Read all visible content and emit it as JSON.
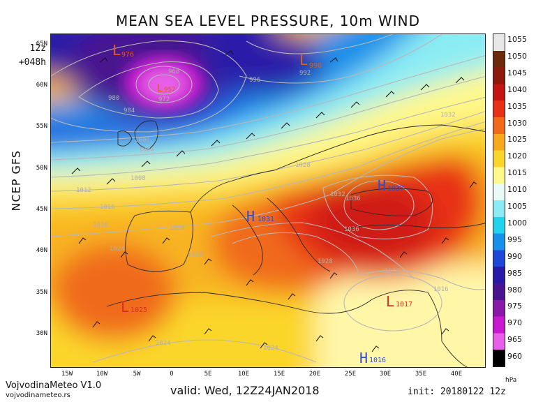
{
  "title": "MEAN SEA LEVEL PRESSURE, 10m WIND",
  "run": {
    "cycle": "12z",
    "lead": "+048h"
  },
  "model": "NCEP GFS",
  "lat_ticks": [
    "65N",
    "60N",
    "55N",
    "50N",
    "45N",
    "40N",
    "35N",
    "30N"
  ],
  "lon_ticks": [
    "15W",
    "10W",
    "5W",
    "0",
    "5E",
    "10E",
    "15E",
    "20E",
    "25E",
    "30E",
    "35E",
    "40E"
  ],
  "colorbar": {
    "unit": "hPa",
    "labels": [
      "1055",
      "1050",
      "1045",
      "1040",
      "1035",
      "1030",
      "1025",
      "1020",
      "1015",
      "1010",
      "1005",
      "1000",
      "995",
      "990",
      "985",
      "980",
      "975",
      "970",
      "965",
      "960"
    ],
    "colors": [
      "#e8e8e8",
      "#6b2a0c",
      "#8e1a0e",
      "#c41414",
      "#e83018",
      "#f06a1a",
      "#f8a81c",
      "#fbd62a",
      "#fff88a",
      "#e8fbf6",
      "#8cecf4",
      "#20d4ee",
      "#1890ea",
      "#2048d8",
      "#2a1aa8",
      "#4a1490",
      "#8a18a8",
      "#c81ad0",
      "#e860e8",
      "#000000"
    ]
  },
  "systems": [
    {
      "type": "L",
      "value": "976",
      "color": "#e05a1a"
    },
    {
      "type": "L",
      "value": "957",
      "color": "#e05a1a"
    },
    {
      "type": "L",
      "value": "990",
      "color": "#e05a1a"
    },
    {
      "type": "H",
      "value": "1031",
      "color": "#2b4ad8"
    },
    {
      "type": "H",
      "value": "1037",
      "color": "#2b4ad8"
    },
    {
      "type": "L",
      "value": "1025",
      "color": "#d83020"
    },
    {
      "type": "L",
      "value": "1017",
      "color": "#d83020"
    },
    {
      "type": "H",
      "value": "1016",
      "color": "#2b4ad8"
    }
  ],
  "isobar_labels": [
    "968",
    "972",
    "980",
    "984",
    "992",
    "996",
    "1000",
    "1004",
    "1008",
    "1012",
    "1016",
    "1020",
    "1024",
    "1024",
    "1024",
    "1028",
    "1028",
    "1028",
    "1032",
    "1032",
    "1036",
    "1036",
    "1020",
    "1016",
    "1016"
  ],
  "footer": {
    "credit": "VojvodinaMeteo V1.0",
    "site": "vojvodinameteo.rs",
    "valid": "valid: Wed, 12Z24JAN2018",
    "init": "init: 20180122 12z"
  }
}
